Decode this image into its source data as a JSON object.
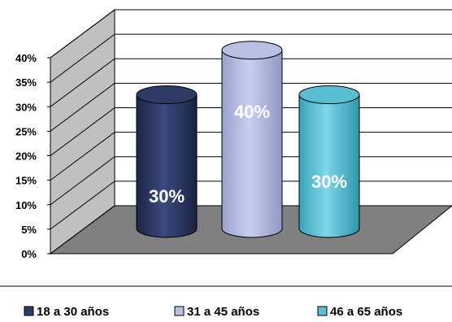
{
  "chart_data": {
    "type": "bar",
    "style": "3d-cylinder",
    "categories": [
      "18 a 30 años",
      "31 a 45 años",
      "46 a 65 años"
    ],
    "values": [
      30,
      40,
      30
    ],
    "data_labels": [
      "30%",
      "40%",
      "30%"
    ],
    "colors": [
      "#2e3b66",
      "#b8bfe3",
      "#5bbfd3"
    ],
    "ylim": [
      0,
      40
    ],
    "y_ticks": [
      "0%",
      "5%",
      "10%",
      "15%",
      "20%",
      "25%",
      "30%",
      "35%",
      "40%"
    ],
    "grid": true,
    "legend_position": "bottom"
  }
}
